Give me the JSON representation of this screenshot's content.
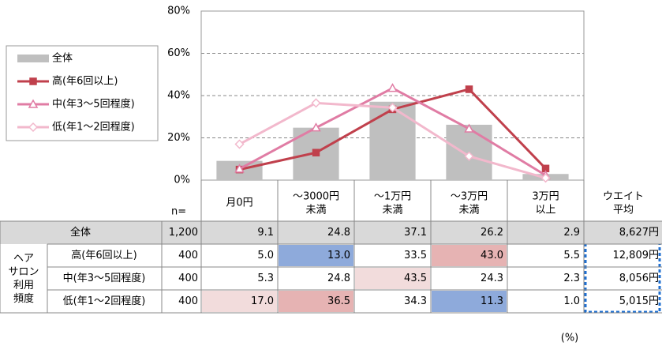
{
  "chart_data": {
    "type": "bar_line",
    "categories": [
      "月0円",
      "～3000円\n未満",
      "～1万円\n未満",
      "～3万円\n未満",
      "3万円\n以上"
    ],
    "ylim": [
      0,
      80
    ],
    "yticks": [
      {
        "value": 0,
        "label": "0%"
      },
      {
        "value": 20,
        "label": "20%"
      },
      {
        "value": 40,
        "label": "40%"
      },
      {
        "value": 60,
        "label": "60%"
      },
      {
        "value": 80,
        "label": "80%"
      }
    ],
    "grid": true,
    "legend": "left",
    "series": [
      {
        "name": "全体",
        "kind": "bar",
        "color": "#bfbfbf",
        "values": [
          9.1,
          24.8,
          37.1,
          26.2,
          2.9
        ],
        "value_labels": [
          "9.1",
          "24.8",
          "37.1",
          "26.2",
          "2.9"
        ],
        "n": {
          "value": 1200,
          "label": "1,200"
        },
        "average": "8,627円",
        "highlights": [
          null,
          null,
          null,
          null,
          null
        ]
      },
      {
        "name": "高(年6回以上)",
        "kind": "line",
        "marker": "square",
        "color": "#c0404c",
        "values": [
          5.0,
          13.0,
          33.5,
          43.0,
          5.5
        ],
        "value_labels": [
          "5.0",
          "13.0",
          "33.5",
          "43.0",
          "5.5"
        ],
        "n": 400,
        "average": "12,809円",
        "highlights": [
          null,
          "#8eaadb",
          null,
          "#e6b3b3",
          null
        ]
      },
      {
        "name": "中(年3～5回程度)",
        "kind": "line",
        "marker": "triangle",
        "color": "#e07ca4",
        "values": [
          5.3,
          24.8,
          43.5,
          24.3,
          2.3
        ],
        "value_labels": [
          "5.3",
          "24.8",
          "43.5",
          "24.3",
          "2.3"
        ],
        "n": 400,
        "average": "8,056円",
        "highlights": [
          null,
          null,
          "#f2dcdc",
          null,
          null
        ]
      },
      {
        "name": "低(年1～2回程度)",
        "kind": "line",
        "marker": "diamond",
        "color": "#f2b8cc",
        "values": [
          17.0,
          36.5,
          34.3,
          11.3,
          1.0
        ],
        "value_labels": [
          "17.0",
          "36.5",
          "34.3",
          "11.3",
          "1.0"
        ],
        "n": 400,
        "average": "5,015円",
        "highlights": [
          "#f2dcdc",
          "#e6b3b3",
          null,
          "#8eaadb",
          null
        ]
      }
    ],
    "table": {
      "n_header": "n=",
      "average_header": "ウエイト\n平均",
      "group_label": "ヘア\nサロン\n利用\n頻度",
      "unit": "(%)"
    }
  }
}
